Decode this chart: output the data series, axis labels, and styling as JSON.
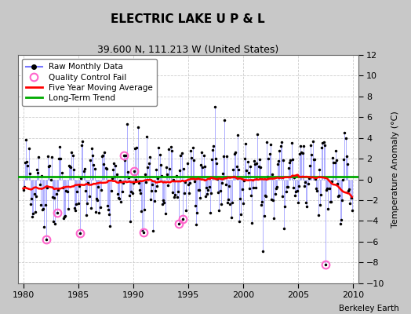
{
  "title": "ELECTRIC LAKE U P & L",
  "subtitle": "39.600 N, 111.213 W (United States)",
  "ylabel": "Temperature Anomaly (°C)",
  "credit": "Berkeley Earth",
  "xlim": [
    1979.5,
    2010.5
  ],
  "ylim": [
    -10,
    12
  ],
  "yticks": [
    -10,
    -8,
    -6,
    -4,
    -2,
    0,
    2,
    4,
    6,
    8,
    10,
    12
  ],
  "xticks": [
    1980,
    1985,
    1990,
    1995,
    2000,
    2005,
    2010
  ],
  "fig_bg_color": "#c8c8c8",
  "plot_bg_color": "#ffffff",
  "grid_color": "#cccccc",
  "raw_line_color": "#7777ff",
  "raw_line_alpha": 0.7,
  "raw_dot_color": "black",
  "qc_fail_color": "#ff66cc",
  "moving_avg_color": "red",
  "trend_color": "#00aa00",
  "trend_y": 0.3,
  "legend_labels": [
    "Raw Monthly Data",
    "Quality Control Fail",
    "Five Year Moving Average",
    "Long-Term Trend"
  ],
  "seed": 42,
  "n_months": 360,
  "start_year": 1980,
  "qc_fail_indices": [
    25,
    37,
    62,
    110,
    121,
    131,
    170,
    174,
    330
  ],
  "qc_fail_values": [
    -5.8,
    -3.2,
    -5.2,
    2.3,
    0.8,
    -5.1,
    -4.3,
    -3.8,
    -8.2
  ],
  "title_fontsize": 11,
  "subtitle_fontsize": 9,
  "tick_fontsize": 8,
  "ylabel_fontsize": 8
}
